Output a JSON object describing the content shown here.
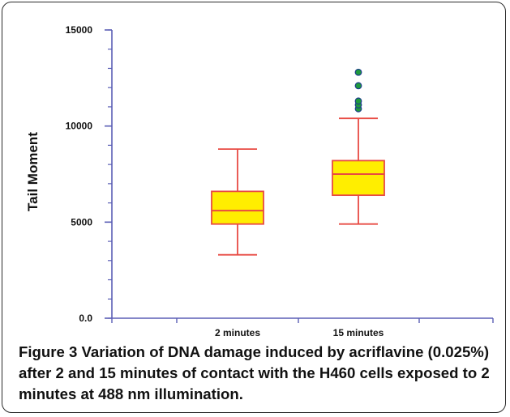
{
  "figure": {
    "label": "Figure 3",
    "caption": "Variation of DNA damage induced by acriflavine (0.025%) after 2 and 15 minutes of contact with the H460 cells exposed to 2 minutes at 488 nm illumination."
  },
  "colors": {
    "axis": "#5b5fb5",
    "box_fill": "#ffee00",
    "box_stroke": "#e84a43",
    "outlier_fill": "#1f9a3c",
    "outlier_stroke": "#1b3e8a"
  },
  "chart_data": {
    "type": "box",
    "ylabel": "Tail Moment",
    "xlabel": "",
    "ylim": [
      0,
      15000
    ],
    "yticks": [
      {
        "value": 0,
        "label": "0.0"
      },
      {
        "value": 5000,
        "label": "5000"
      },
      {
        "value": 10000,
        "label": "10000"
      },
      {
        "value": 15000,
        "label": "15000"
      }
    ],
    "minor_tick_step": 1000,
    "categories": [
      "2 minutes",
      "15 minutes"
    ],
    "boxes": [
      {
        "category": "2 minutes",
        "whisker_low": 3300,
        "q1": 4900,
        "median": 5600,
        "q3": 6600,
        "whisker_high": 8800,
        "outliers": []
      },
      {
        "category": "15 minutes",
        "whisker_low": 4900,
        "q1": 6400,
        "median": 7500,
        "q3": 8200,
        "whisker_high": 10400,
        "outliers": [
          10900,
          11100,
          11300,
          12100,
          12800
        ]
      }
    ],
    "grid": false,
    "legend": "none"
  }
}
